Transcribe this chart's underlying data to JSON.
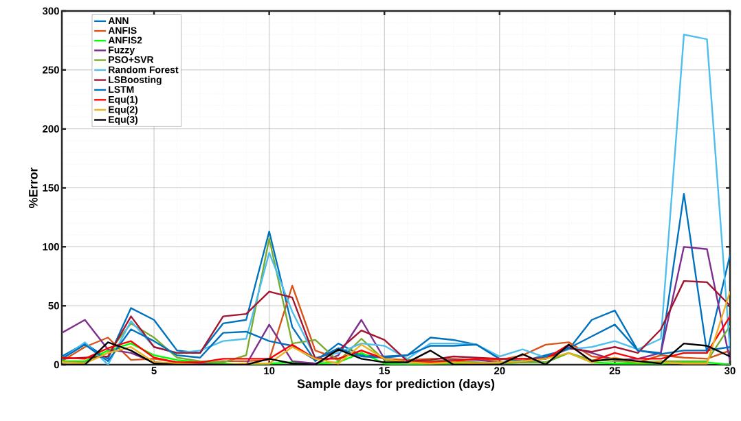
{
  "chart_data": {
    "type": "line",
    "xlabel": "Sample days for prediction (days)",
    "ylabel": "%Error",
    "x": [
      1,
      2,
      3,
      4,
      5,
      6,
      7,
      8,
      9,
      10,
      11,
      12,
      13,
      14,
      15,
      16,
      17,
      18,
      19,
      20,
      21,
      22,
      23,
      24,
      25,
      26,
      27,
      28,
      29,
      30
    ],
    "xlim": [
      1,
      30
    ],
    "xticks": [
      5,
      10,
      15,
      20,
      25,
      30
    ],
    "ylim": [
      0,
      300
    ],
    "yticks": [
      0,
      50,
      100,
      150,
      200,
      250,
      300
    ],
    "grid": true,
    "legend": "top left",
    "marker": "none",
    "line_style": "solid",
    "series": [
      {
        "name": "ANN",
        "color": "#0072bd",
        "values": [
          7,
          18,
          5,
          48,
          38,
          12,
          10,
          35,
          38,
          113,
          32,
          3,
          18,
          8,
          7,
          8,
          23,
          21,
          17,
          5,
          3,
          8,
          13,
          38,
          46,
          12,
          10,
          145,
          10,
          93
        ]
      },
      {
        "name": "ANFIS",
        "color": "#d95319",
        "values": [
          3,
          15,
          23,
          4,
          5,
          2,
          1,
          3,
          3,
          4,
          67,
          12,
          5,
          12,
          5,
          4,
          5,
          5,
          4,
          4,
          8,
          17,
          19,
          7,
          5,
          2,
          8,
          6,
          5,
          12
        ]
      },
      {
        "name": "ANFIS2",
        "color": "#00ff00",
        "values": [
          3,
          3,
          12,
          18,
          8,
          4,
          2,
          1,
          0,
          1,
          2,
          1,
          2,
          10,
          1,
          0,
          1,
          1,
          1,
          1,
          2,
          2,
          10,
          2,
          1,
          1,
          1,
          2,
          2,
          0
        ]
      },
      {
        "name": "Fuzzy",
        "color": "#7e2f8e",
        "values": [
          27,
          38,
          13,
          10,
          2,
          1,
          1,
          0,
          0,
          34,
          3,
          1,
          8,
          38,
          5,
          2,
          3,
          4,
          4,
          2,
          2,
          5,
          15,
          10,
          4,
          5,
          10,
          100,
          98,
          3
        ]
      },
      {
        "name": "PSO+SVR",
        "color": "#77ac30",
        "values": [
          2,
          2,
          10,
          35,
          23,
          6,
          3,
          2,
          8,
          107,
          18,
          21,
          3,
          22,
          4,
          2,
          3,
          3,
          2,
          1,
          2,
          2,
          10,
          4,
          3,
          2,
          3,
          3,
          3,
          33
        ]
      },
      {
        "name": "Random Forest",
        "color": "#4dbeee",
        "values": [
          5,
          19,
          0,
          37,
          15,
          10,
          12,
          20,
          22,
          95,
          45,
          6,
          10,
          18,
          16,
          5,
          18,
          18,
          17,
          7,
          13,
          6,
          13,
          15,
          20,
          13,
          22,
          280,
          276,
          12
        ]
      },
      {
        "name": "LSBoosting",
        "color": "#a2142f",
        "values": [
          5,
          6,
          7,
          41,
          15,
          10,
          10,
          41,
          43,
          62,
          57,
          5,
          12,
          29,
          21,
          3,
          4,
          7,
          6,
          5,
          5,
          5,
          14,
          11,
          15,
          10,
          30,
          71,
          70,
          50
        ]
      },
      {
        "name": "LSTM",
        "color": "#0072bd",
        "values": [
          5,
          17,
          3,
          30,
          20,
          8,
          6,
          27,
          28,
          20,
          16,
          4,
          14,
          7,
          6,
          8,
          16,
          16,
          17,
          5,
          3,
          7,
          14,
          24,
          34,
          12,
          9,
          12,
          12,
          15
        ]
      },
      {
        "name": "Equ(1)",
        "color": "#ff0000",
        "values": [
          6,
          5,
          14,
          20,
          6,
          2,
          2,
          5,
          5,
          5,
          17,
          5,
          5,
          12,
          5,
          2,
          2,
          3,
          5,
          5,
          5,
          5,
          17,
          3,
          10,
          5,
          5,
          10,
          10,
          41
        ]
      },
      {
        "name": "Equ(2)",
        "color": "#edb120",
        "values": [
          2,
          1,
          10,
          15,
          2,
          1,
          0,
          0,
          1,
          1,
          15,
          5,
          1,
          17,
          5,
          2,
          1,
          2,
          1,
          2,
          3,
          5,
          10,
          2,
          6,
          2,
          2,
          1,
          1,
          62
        ]
      },
      {
        "name": "Equ(3)",
        "color": "#000000",
        "values": [
          0,
          0,
          19,
          12,
          1,
          0,
          0,
          0,
          0,
          5,
          1,
          0,
          13,
          5,
          2,
          2,
          12,
          0,
          0,
          0,
          9,
          0,
          17,
          3,
          5,
          3,
          1,
          18,
          16,
          7
        ]
      }
    ]
  }
}
